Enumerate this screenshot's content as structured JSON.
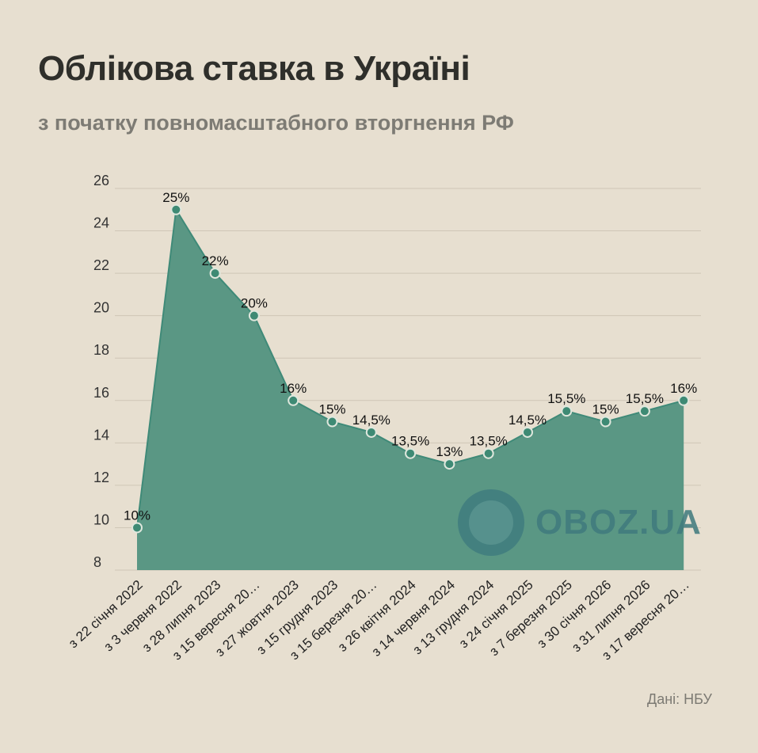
{
  "title": "Облікова ставка в Україні",
  "subtitle": "з початку повномасштабного вторгнення РФ",
  "source": "Дані: НБУ",
  "watermark": "OBOZ.UA",
  "colors": {
    "background": "#e7dfd0",
    "area_fill": "#5a9784",
    "line": "#3f8a78",
    "marker": "#3e8a74",
    "marker_stroke": "#dfe7dd",
    "grid": "#cfc6b6",
    "watermark": "#3f7a7d"
  },
  "icons": {
    "watermark_logo": "globe-icon"
  },
  "chart_data": {
    "type": "area",
    "title": "Облікова ставка в Україні",
    "subtitle": "з початку повномасштабного вторгнення РФ",
    "xlabel": "",
    "ylabel": "",
    "ylim": [
      8,
      26
    ],
    "yticks": [
      "8",
      "10",
      "12",
      "14",
      "16",
      "18",
      "20",
      "22",
      "24",
      "26"
    ],
    "grid": true,
    "categories": [
      "з 22 січня 2022",
      "з 3 червня 2022",
      "з 28 липня 2023",
      "з 15 вересня 20…",
      "з 27 жовтня 2023",
      "з 15 грудня 2023",
      "з 15 березня 20…",
      "з 26 квітня 2024",
      "з 14 червня 2024",
      "з 13 грудня 2024",
      "з 24 січня 2025",
      "з 7 березня 2025",
      "з 30 січня 2026",
      "з 31 липня 2026",
      "з 17 вересня 20…"
    ],
    "values": [
      10,
      25,
      22,
      20,
      16,
      15,
      14.5,
      13.5,
      13,
      13.5,
      14.5,
      15.5,
      15,
      15.5,
      16
    ],
    "data_labels": [
      "10%",
      "25%",
      "22%",
      "20%",
      "16%",
      "15%",
      "14,5%",
      "13,5%",
      "13%",
      "13,5%",
      "14,5%",
      "15,5%",
      "15%",
      "15,5%",
      "16%"
    ]
  }
}
